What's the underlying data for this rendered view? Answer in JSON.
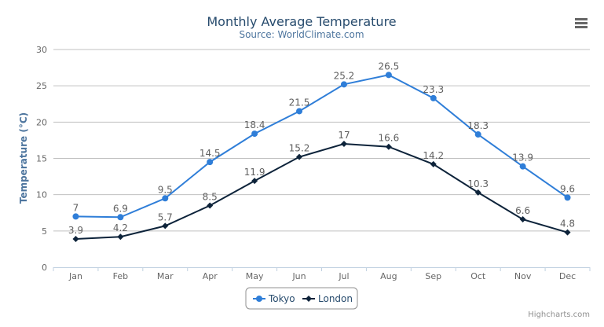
{
  "chart_data": {
    "type": "line",
    "title": "Monthly Average Temperature",
    "subtitle": "Source: WorldClimate.com",
    "xlabel": "",
    "ylabel": "Temperature (°C)",
    "ylim": [
      0,
      30
    ],
    "yticks": [
      0,
      5,
      10,
      15,
      20,
      25,
      30
    ],
    "grid": true,
    "legend": "bottom-center",
    "categories": [
      "Jan",
      "Feb",
      "Mar",
      "Apr",
      "May",
      "Jun",
      "Jul",
      "Aug",
      "Sep",
      "Oct",
      "Nov",
      "Dec"
    ],
    "series": [
      {
        "name": "Tokyo",
        "color": "#2f7ed8",
        "marker": "circle",
        "values": [
          7.0,
          6.9,
          9.5,
          14.5,
          18.4,
          21.5,
          25.2,
          26.5,
          23.3,
          18.3,
          13.9,
          9.6
        ]
      },
      {
        "name": "London",
        "color": "#0d233a",
        "marker": "diamond",
        "values": [
          3.9,
          4.2,
          5.7,
          8.5,
          11.9,
          15.2,
          17.0,
          16.6,
          14.2,
          10.3,
          6.6,
          4.8
        ]
      }
    ]
  },
  "credits": "Highcharts.com",
  "menu_icon": "hamburger-menu-icon"
}
